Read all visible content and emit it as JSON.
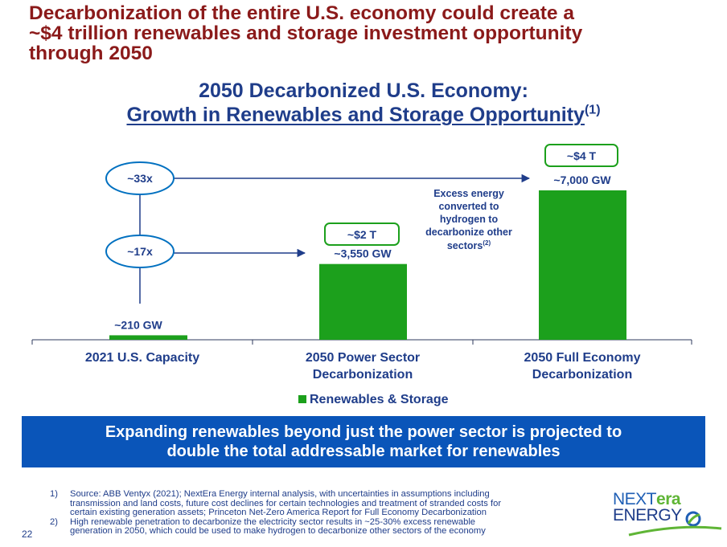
{
  "headline": {
    "line1": "Decarbonization of the entire U.S. economy could create a",
    "line2": "~$4 trillion renewables and storage investment opportunity",
    "line3": "through 2050"
  },
  "chart_data": {
    "type": "bar",
    "title_line1": "2050 Decarbonized U.S. Economy:",
    "title_line2": "Growth in Renewables and Storage Opportunity",
    "title_footnote_ref": "(1)",
    "categories": [
      "2021 U.S. Capacity",
      "2050 Power Sector Decarbonization",
      "2050 Full Economy Decarbonization"
    ],
    "category_lines": [
      [
        "2021 U.S. Capacity"
      ],
      [
        "2050 Power Sector",
        "Decarbonization"
      ],
      [
        "2050 Full Economy",
        "Decarbonization"
      ]
    ],
    "series": [
      {
        "name": "Renewables & Storage",
        "values": [
          210,
          3550,
          7000
        ],
        "color": "#1ca01c"
      }
    ],
    "data_labels": [
      "~210 GW",
      "~3,550 GW",
      "~7,000 GW"
    ],
    "investment_labels": [
      "",
      "~$2 T",
      "~$4 T"
    ],
    "multipliers": [
      {
        "label": "~17x",
        "target": "2050 Power Sector Decarbonization"
      },
      {
        "label": "~33x",
        "target": "2050 Full Economy Decarbonization"
      }
    ],
    "annotation": {
      "lines": [
        "Excess energy",
        "converted to",
        "hydrogen to",
        "decarbonize other",
        "sectors"
      ],
      "footnote_ref": "(2)"
    },
    "ylim": [
      0,
      7000
    ],
    "grid": false,
    "legend": "bottom",
    "colors": {
      "bar": "#1ca01c",
      "arrow": "#1f3d8a",
      "oval_border": "#0070c0",
      "box_border": "#1ca01c",
      "text": "#1f3d8a"
    }
  },
  "banner": {
    "line1": "Expanding renewables beyond just the power sector is projected to",
    "line2": "double the total addressable market for renewables"
  },
  "footnotes": [
    {
      "num": "1)",
      "lines": [
        "Source: ABB Ventyx (2021); NextEra Energy internal analysis, with uncertainties in assumptions including",
        "transmission and land costs, future cost declines for certain technologies and treatment of stranded costs for",
        "certain existing generation assets; Princeton Net-Zero America Report for Full Economy Decarbonization"
      ]
    },
    {
      "num": "2)",
      "lines": [
        "High renewable penetration to decarbonize the electricity sector results in ~25-30% excess renewable",
        "generation in 2050, which could be used to make hydrogen to decarbonize other sectors of the economy"
      ]
    }
  ],
  "page_number": "22",
  "logo": {
    "next": "NEXT",
    "era": "era",
    "energy": "ENERGY",
    "icon": "nextera-swoosh-icon"
  }
}
